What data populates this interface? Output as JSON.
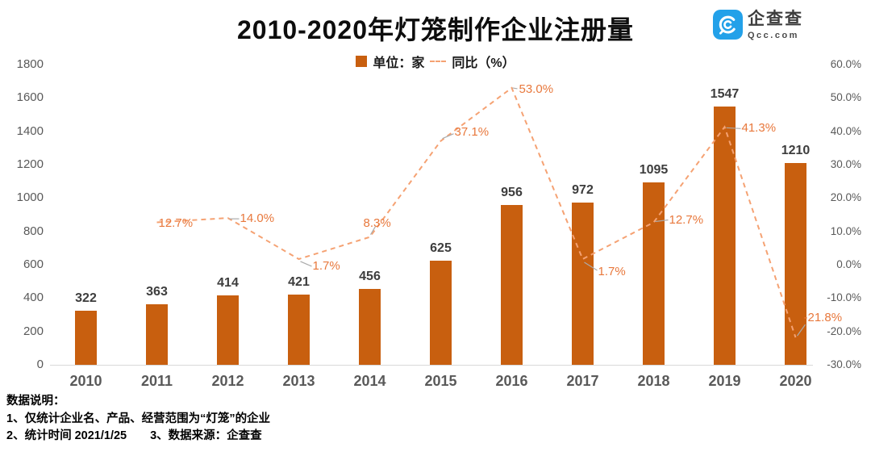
{
  "header": {
    "title": "2010-2020年灯笼制作企业注册量",
    "logo": {
      "name": "企查查",
      "domain": "Qcc.com",
      "brand_color": "#23A1E9"
    }
  },
  "legend": {
    "bar_label": "单位：家",
    "line_label": "同比（%）"
  },
  "chart_data": {
    "type": "bar+line",
    "title": "2010-2020年灯笼制作企业注册量",
    "categories": [
      "2010",
      "2011",
      "2012",
      "2013",
      "2014",
      "2015",
      "2016",
      "2017",
      "2018",
      "2019",
      "2020"
    ],
    "series": [
      {
        "name": "单位：家",
        "type": "bar",
        "color": "#C85F0F",
        "values": [
          322,
          363,
          414,
          421,
          456,
          625,
          956,
          972,
          1095,
          1547,
          1210
        ]
      },
      {
        "name": "同比（%）",
        "type": "line",
        "style": "dashed",
        "color": "#F5A273",
        "label_color": "#E8783C",
        "values": [
          null,
          12.7,
          14.0,
          1.7,
          8.3,
          37.1,
          53.0,
          1.7,
          12.7,
          41.3,
          -21.8
        ],
        "point_labels": [
          null,
          "12.7%",
          "14.0%",
          "1.7%",
          "8.3%",
          "37.1%",
          "53.0%",
          "1.7%",
          "12.7%",
          "41.3%",
          "-21.8%"
        ]
      }
    ],
    "left_axis": {
      "min": 0,
      "max": 1800,
      "ticks": [
        "1800",
        "1600",
        "1400",
        "1200",
        "1000",
        "800",
        "600",
        "400",
        "200",
        "0"
      ]
    },
    "right_axis": {
      "min": -30,
      "max": 60,
      "ticks": [
        "60.0%",
        "50.0%",
        "40.0%",
        "30.0%",
        "20.0%",
        "10.0%",
        "0.0%",
        "-10.0%",
        "-20.0%",
        "-30.0%"
      ]
    },
    "grid": false,
    "legend_position": "top-center"
  },
  "notes": {
    "lines": [
      "数据说明：",
      "1、仅统计企业名、产品、经营范围为“灯笼”的企业",
      "2、统计时间 2021/1/25　　3、数据来源：企查查"
    ]
  }
}
